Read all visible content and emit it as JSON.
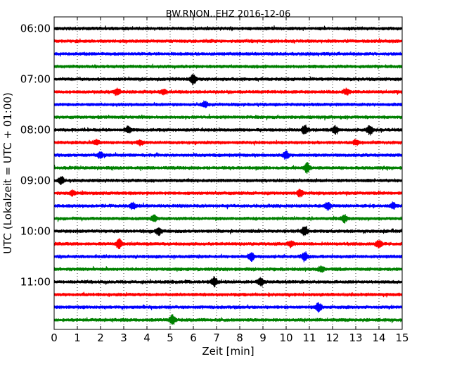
{
  "chart_data": {
    "type": "line",
    "title": "BW.RNON..EHZ 2016-12-06",
    "xlabel": "Zeit  [min]",
    "ylabel": "UTC (Lokalzeit = UTC + 01:00)",
    "xlim": [
      0,
      15
    ],
    "xticks": [
      "0",
      "1",
      "2",
      "3",
      "4",
      "5",
      "6",
      "7",
      "8",
      "9",
      "10",
      "11",
      "12",
      "13",
      "14",
      "15"
    ],
    "yticks": [
      "06:00",
      "07:00",
      "08:00",
      "09:00",
      "10:00",
      "11:00"
    ],
    "trace_interval_min": 15,
    "grid": "vertical-dotted",
    "colors": [
      "#000000",
      "#ff0000",
      "#0000ff",
      "#008000"
    ],
    "series": [
      {
        "start": "06:00",
        "events": []
      },
      {
        "start": "06:15",
        "events": []
      },
      {
        "start": "06:30",
        "events": []
      },
      {
        "start": "06:45",
        "events": []
      },
      {
        "start": "07:00",
        "events": [
          {
            "t": 6.0,
            "amp": 7
          }
        ]
      },
      {
        "start": "07:15",
        "events": [
          {
            "t": 2.7,
            "amp": 4
          },
          {
            "t": 4.7,
            "amp": 3
          },
          {
            "t": 12.6,
            "amp": 4
          }
        ]
      },
      {
        "start": "07:30",
        "events": [
          {
            "t": 6.5,
            "amp": 4
          }
        ]
      },
      {
        "start": "07:45",
        "events": []
      },
      {
        "start": "08:00",
        "events": [
          {
            "t": 3.2,
            "amp": 4
          },
          {
            "t": 10.8,
            "amp": 6
          },
          {
            "t": 12.1,
            "amp": 5
          },
          {
            "t": 13.6,
            "amp": 6
          }
        ]
      },
      {
        "start": "08:15",
        "events": [
          {
            "t": 1.8,
            "amp": 3
          },
          {
            "t": 3.7,
            "amp": 3
          },
          {
            "t": 13.0,
            "amp": 3
          }
        ]
      },
      {
        "start": "08:30",
        "events": [
          {
            "t": 2.0,
            "amp": 4
          },
          {
            "t": 10.0,
            "amp": 5
          }
        ]
      },
      {
        "start": "08:45",
        "events": [
          {
            "t": 10.9,
            "amp": 7
          }
        ]
      },
      {
        "start": "09:00",
        "events": [
          {
            "t": 0.3,
            "amp": 5
          }
        ]
      },
      {
        "start": "09:15",
        "events": [
          {
            "t": 0.8,
            "amp": 3
          },
          {
            "t": 10.6,
            "amp": 5
          }
        ]
      },
      {
        "start": "09:30",
        "events": [
          {
            "t": 3.4,
            "amp": 4
          },
          {
            "t": 11.8,
            "amp": 5
          },
          {
            "t": 14.6,
            "amp": 4
          }
        ]
      },
      {
        "start": "09:45",
        "events": [
          {
            "t": 4.3,
            "amp": 4
          },
          {
            "t": 12.5,
            "amp": 5
          }
        ]
      },
      {
        "start": "10:00",
        "events": [
          {
            "t": 4.5,
            "amp": 5
          },
          {
            "t": 10.8,
            "amp": 6
          }
        ]
      },
      {
        "start": "10:15",
        "events": [
          {
            "t": 2.8,
            "amp": 6
          },
          {
            "t": 10.2,
            "amp": 4
          },
          {
            "t": 14.0,
            "amp": 5
          }
        ]
      },
      {
        "start": "10:30",
        "events": [
          {
            "t": 8.5,
            "amp": 5
          },
          {
            "t": 10.8,
            "amp": 6
          }
        ]
      },
      {
        "start": "10:45",
        "events": [
          {
            "t": 11.5,
            "amp": 4
          }
        ]
      },
      {
        "start": "11:00",
        "events": [
          {
            "t": 6.9,
            "amp": 6
          },
          {
            "t": 8.9,
            "amp": 6
          }
        ]
      },
      {
        "start": "11:15",
        "events": []
      },
      {
        "start": "11:30",
        "events": [
          {
            "t": 11.4,
            "amp": 6
          }
        ]
      },
      {
        "start": "11:45",
        "events": [
          {
            "t": 5.1,
            "amp": 6
          }
        ]
      }
    ]
  }
}
